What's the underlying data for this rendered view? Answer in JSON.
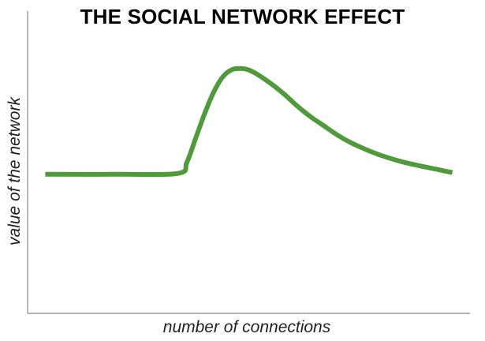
{
  "chart_data": {
    "type": "line",
    "title": "THE SOCIAL NETWORK EFFECT",
    "xlabel": "number of connections",
    "ylabel": "value of the network",
    "xlim": [
      0,
      100
    ],
    "ylim": [
      0,
      100
    ],
    "grid": false,
    "line_color": "#4f9a3a",
    "axis_color": "#888888",
    "series": [
      {
        "points": [
          [
            4,
            46
          ],
          [
            20,
            46
          ],
          [
            34,
            46.3
          ],
          [
            36,
            50
          ],
          [
            38,
            58
          ],
          [
            40,
            66
          ],
          [
            42,
            73
          ],
          [
            44,
            78
          ],
          [
            46,
            80.5
          ],
          [
            48,
            81
          ],
          [
            50,
            80.5
          ],
          [
            52,
            79
          ],
          [
            55,
            76
          ],
          [
            58,
            72.5
          ],
          [
            61,
            68.5
          ],
          [
            64,
            65
          ],
          [
            67,
            62
          ],
          [
            70,
            59
          ],
          [
            73,
            56.5
          ],
          [
            76,
            54.5
          ],
          [
            80,
            52.2
          ],
          [
            84,
            50.4
          ],
          [
            88,
            49
          ],
          [
            92,
            47.8
          ],
          [
            96,
            46.6
          ]
        ]
      }
    ]
  }
}
